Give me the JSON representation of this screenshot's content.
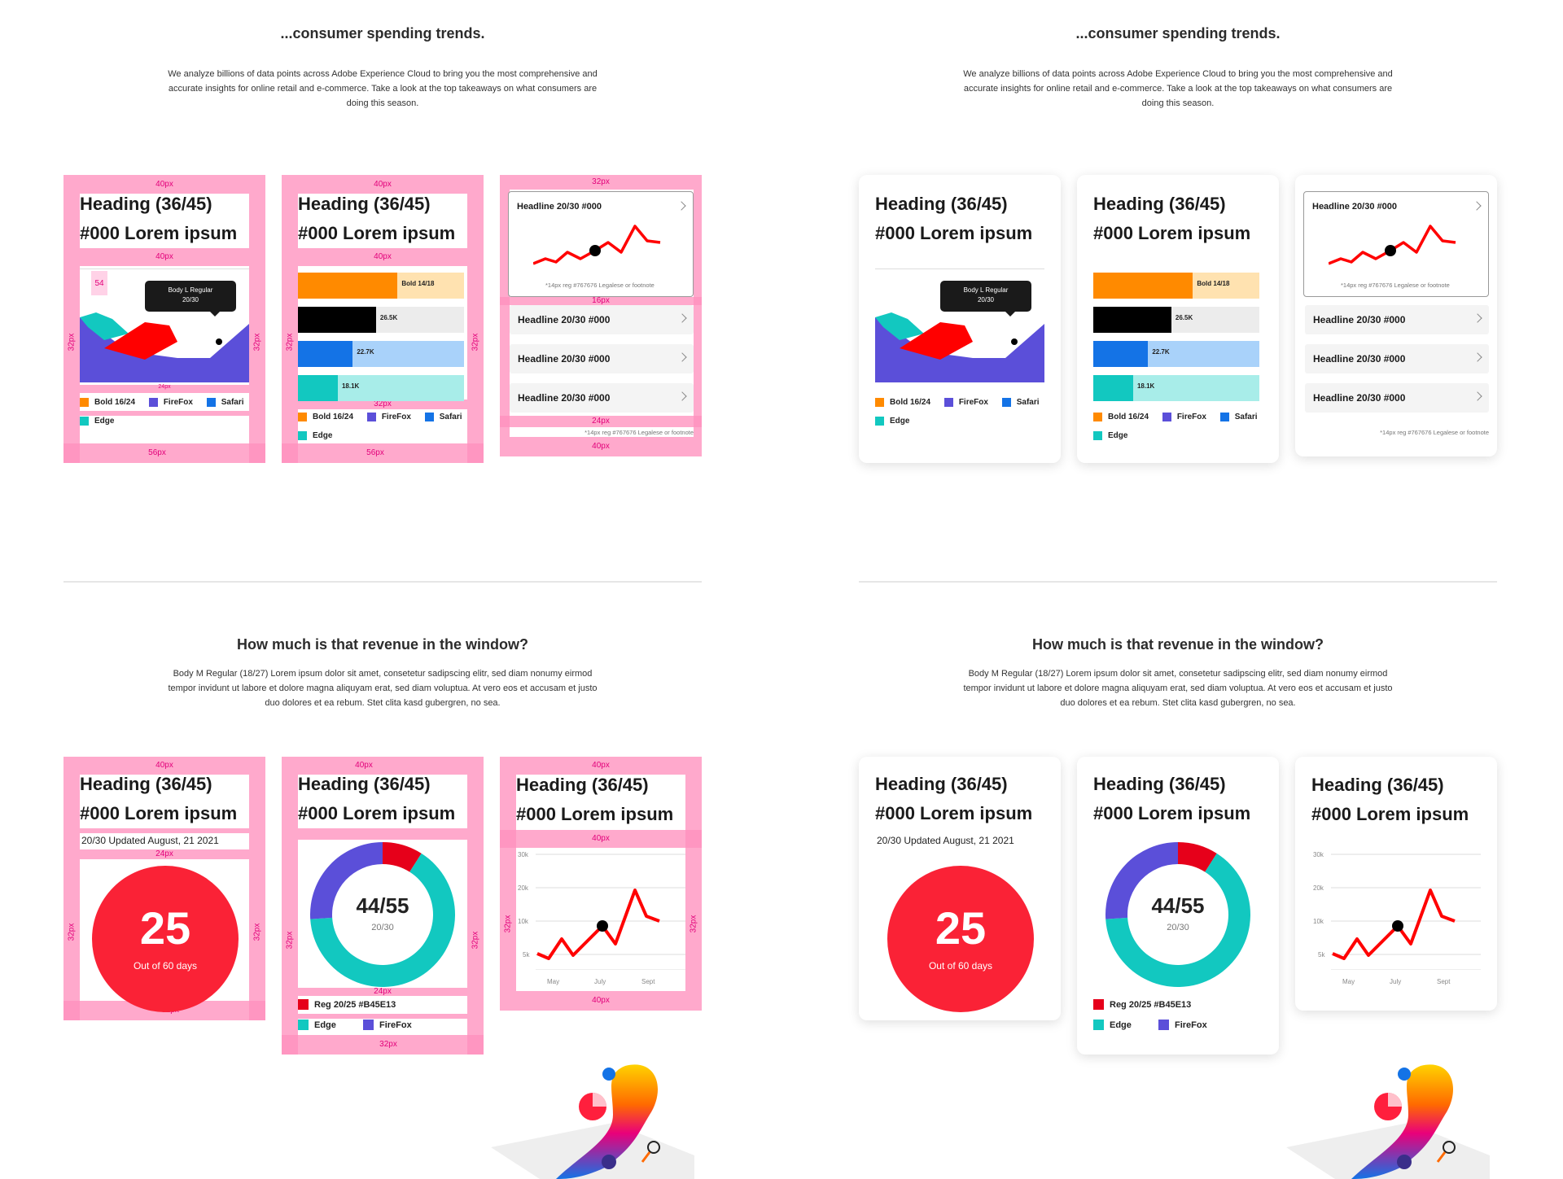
{
  "section1": {
    "title": "...consumer spending trends.",
    "body": "We analyze billions of data points across Adobe Experience Cloud to bring you the most comprehensive and accurate insights for online retail and e-commerce. Take a look at the top takeaways on what consumers are doing this season."
  },
  "section2": {
    "title": "How much is that revenue in the window?",
    "body": "Body M Regular (18/27) Lorem ipsum dolor sit amet, consetetur sadipscing elitr, sed diam nonumy eirmod tempor invidunt ut labore et dolore magna aliquyam erat, sed diam voluptua. At vero eos et accusam et justo duo dolores et ea rebum. Stet clita kasd gubergren, no sea."
  },
  "heading": {
    "line1": "Heading (36/45)",
    "line2": "#000 Lorem ipsum"
  },
  "tooltip": {
    "line1": "Body L Regular",
    "line2": "20/30"
  },
  "legend_a": [
    {
      "label": "Bold 16/24",
      "color": "#ff8a00"
    },
    {
      "label": "FireFox",
      "color": "#5b4fd9"
    },
    {
      "label": "Safari",
      "color": "#1473e6"
    },
    {
      "label": "Edge",
      "color": "#12c8c0"
    }
  ],
  "bars": {
    "header_label": "Bold 14/18",
    "rows": [
      {
        "label": "Bold 14/18",
        "value": 0.6,
        "color": "#ff8a00",
        "bg": "#ffe2b0"
      },
      {
        "label": "26.5K",
        "value": 0.47,
        "color": "#000000",
        "bg": "#ececec"
      },
      {
        "label": "22.7K",
        "value": 0.33,
        "color": "#1473e6",
        "bg": "#a9d2fa"
      },
      {
        "label": "18.1K",
        "value": 0.24,
        "color": "#12c8c0",
        "bg": "#a8ede9"
      }
    ]
  },
  "list_card": {
    "featured_title": "Headline 20/30 #000",
    "featured_note": "*14px reg #767676 Legalese or footnote",
    "items": [
      "Headline 20/30 #000",
      "Headline 20/30 #000",
      "Headline 20/30 #000"
    ],
    "footnote": "*14px reg #767676 Legalese or footnote"
  },
  "stat_card": {
    "updated": "20/30 Updated August, 21 2021",
    "value": "25",
    "subtitle": "Out of 60 days"
  },
  "donut_card": {
    "value": "44/55",
    "subtitle": "20/30",
    "segments": [
      {
        "value": 0.09,
        "color": "#e6001a"
      },
      {
        "value": 0.65,
        "color": "#12c8c0"
      },
      {
        "value": 0.26,
        "color": "#5b4fd9"
      }
    ],
    "legend": [
      {
        "label": "Reg 20/25 #B45E13",
        "color": "#e6001a"
      },
      {
        "label": "Edge",
        "color": "#12c8c0"
      },
      {
        "label": "FireFox",
        "color": "#5b4fd9"
      }
    ]
  },
  "line_card": {
    "y_ticks": [
      "30k",
      "20k",
      "10k",
      "5k"
    ],
    "x_ticks": [
      "May",
      "July",
      "Sept"
    ]
  },
  "overlay_labels": {
    "p40": "40px",
    "p32": "32px",
    "p24": "24px",
    "p16": "16px",
    "p56": "56px",
    "p54": "54"
  },
  "colors": {
    "accent_red": "#fa2236",
    "overlay_pink": "#ff91be",
    "line_red": "#ff0000"
  }
}
